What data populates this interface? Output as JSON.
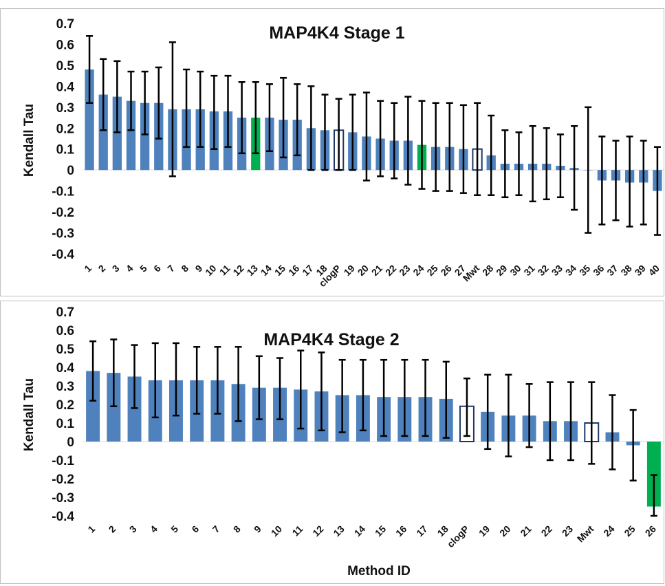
{
  "colors": {
    "bar": "#4f81bd",
    "highlight": "#00b050",
    "reference_outline": "#1f3864"
  },
  "chart_data": [
    {
      "type": "bar",
      "title": "MAP4K4 Stage 1",
      "ylabel": "Kendall Tau",
      "xlabel": "",
      "ylim": [
        -0.4,
        0.7
      ],
      "yticks": [
        "0.7",
        "0.6",
        "0.5",
        "0.4",
        "0.3",
        "0.2",
        "0.1",
        "0",
        "-0.1",
        "-0.2",
        "-0.3",
        "-0.4"
      ],
      "categories": [
        "1",
        "2",
        "3",
        "4",
        "5",
        "6",
        "7",
        "8",
        "9",
        "10",
        "11",
        "12",
        "13",
        "14",
        "15",
        "16",
        "17",
        "18",
        "clogP",
        "19",
        "20",
        "21",
        "22",
        "23",
        "24",
        "25",
        "26",
        "27",
        "Mwt",
        "28",
        "29",
        "30",
        "31",
        "32",
        "33",
        "34",
        "35",
        "36",
        "37",
        "38",
        "39",
        "40"
      ],
      "values": [
        0.48,
        0.36,
        0.35,
        0.33,
        0.32,
        0.32,
        0.29,
        0.29,
        0.29,
        0.28,
        0.28,
        0.25,
        0.25,
        0.25,
        0.24,
        0.24,
        0.2,
        0.19,
        0.19,
        0.18,
        0.16,
        0.15,
        0.14,
        0.14,
        0.12,
        0.11,
        0.11,
        0.1,
        0.1,
        0.07,
        0.03,
        0.03,
        0.03,
        0.03,
        0.02,
        0.01,
        0.0,
        -0.05,
        -0.05,
        -0.06,
        -0.06,
        -0.1
      ],
      "err_low": [
        0.32,
        0.19,
        0.18,
        0.19,
        0.17,
        0.15,
        -0.03,
        0.11,
        0.11,
        0.1,
        0.11,
        0.08,
        0.08,
        0.09,
        0.06,
        0.07,
        0.0,
        0.0,
        0.0,
        0.0,
        -0.05,
        -0.03,
        -0.04,
        -0.07,
        -0.09,
        -0.1,
        -0.1,
        -0.11,
        -0.12,
        -0.12,
        -0.13,
        -0.12,
        -0.15,
        -0.14,
        -0.13,
        -0.19,
        -0.3,
        -0.26,
        -0.24,
        -0.27,
        -0.26,
        -0.31
      ],
      "err_high": [
        0.64,
        0.53,
        0.52,
        0.47,
        0.47,
        0.49,
        0.61,
        0.48,
        0.47,
        0.45,
        0.45,
        0.42,
        0.42,
        0.41,
        0.44,
        0.41,
        0.4,
        0.36,
        0.34,
        0.36,
        0.37,
        0.33,
        0.32,
        0.35,
        0.33,
        0.32,
        0.32,
        0.31,
        0.32,
        0.26,
        0.19,
        0.18,
        0.21,
        0.2,
        0.17,
        0.21,
        0.3,
        0.16,
        0.14,
        0.16,
        0.14,
        0.11
      ],
      "highlight": [
        "13",
        "24"
      ],
      "reference": [
        "clogP",
        "Mwt"
      ]
    },
    {
      "type": "bar",
      "title": "MAP4K4 Stage 2",
      "ylabel": "Kendall Tau",
      "xlabel": "Method ID",
      "ylim": [
        -0.4,
        0.7
      ],
      "yticks": [
        "0.7",
        "0.6",
        "0.5",
        "0.4",
        "0.3",
        "0.2",
        "0.1",
        "0",
        "-0.1",
        "-0.2",
        "-0.3",
        "-0.4"
      ],
      "categories": [
        "1",
        "2",
        "3",
        "4",
        "5",
        "6",
        "7",
        "8",
        "9",
        "10",
        "11",
        "12",
        "13",
        "14",
        "15",
        "16",
        "17",
        "18",
        "clogP",
        "19",
        "20",
        "21",
        "22",
        "23",
        "Mwt",
        "24",
        "25",
        "26"
      ],
      "values": [
        0.38,
        0.37,
        0.35,
        0.33,
        0.33,
        0.33,
        0.33,
        0.31,
        0.29,
        0.29,
        0.28,
        0.27,
        0.25,
        0.25,
        0.24,
        0.24,
        0.24,
        0.23,
        0.19,
        0.16,
        0.14,
        0.14,
        0.11,
        0.11,
        0.1,
        0.05,
        -0.02,
        -0.35
      ],
      "err_low": [
        0.22,
        0.19,
        0.18,
        0.13,
        0.14,
        0.15,
        0.15,
        0.11,
        0.12,
        0.12,
        0.07,
        0.06,
        0.05,
        0.06,
        0.03,
        0.03,
        0.03,
        0.02,
        0.03,
        -0.04,
        -0.08,
        -0.03,
        -0.1,
        -0.1,
        -0.12,
        -0.15,
        -0.21,
        -0.4
      ],
      "err_high": [
        0.54,
        0.55,
        0.52,
        0.53,
        0.53,
        0.51,
        0.51,
        0.51,
        0.46,
        0.45,
        0.49,
        0.48,
        0.44,
        0.44,
        0.44,
        0.44,
        0.44,
        0.43,
        0.34,
        0.36,
        0.36,
        0.31,
        0.32,
        0.32,
        0.32,
        0.25,
        0.17,
        -0.18
      ],
      "highlight": [
        "26"
      ],
      "reference": [
        "clogP",
        "Mwt"
      ]
    }
  ]
}
